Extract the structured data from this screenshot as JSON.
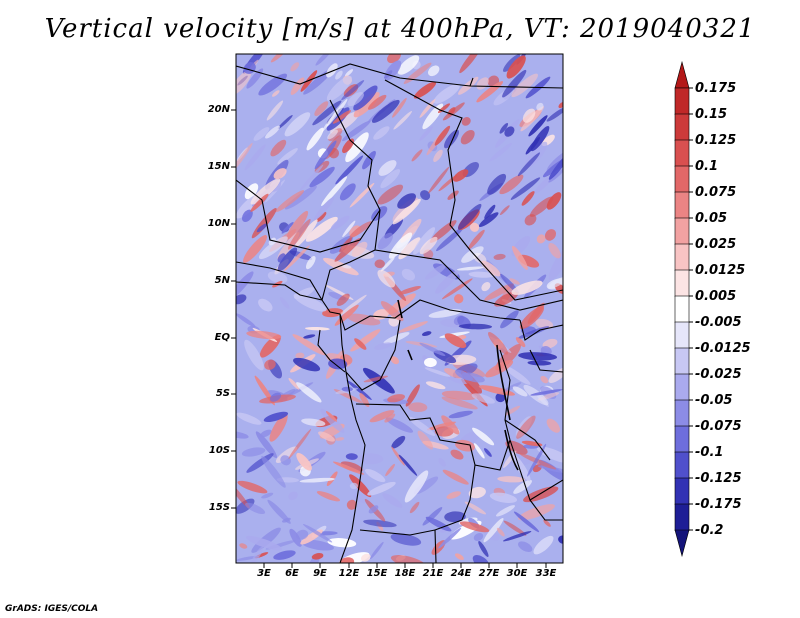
{
  "title": "Vertical velocity [m/s] at 400hPa, VT: 2019040321",
  "credit": "GrADS: IGES/COLA",
  "map": {
    "lat_labels": [
      "20N",
      "15N",
      "10N",
      "5N",
      "EQ",
      "5S",
      "10S",
      "15S"
    ],
    "lon_labels": [
      "3E",
      "6E",
      "9E",
      "12E",
      "15E",
      "18E",
      "21E",
      "24E",
      "27E",
      "30E",
      "33E"
    ]
  },
  "colorbar": {
    "labels": [
      "0.175",
      "0.15",
      "0.125",
      "0.1",
      "0.075",
      "0.05",
      "0.025",
      "0.0125",
      "0.005",
      "-0.005",
      "-0.0125",
      "-0.025",
      "-0.05",
      "-0.075",
      "-0.1",
      "-0.125",
      "-0.175",
      "-0.2"
    ],
    "colors": [
      "#b31818",
      "#c02828",
      "#cc3a3a",
      "#d95050",
      "#e26868",
      "#eb8484",
      "#f2a2a2",
      "#f8c4c4",
      "#fce4e4",
      "#ffffff",
      "#e6e6fa",
      "#c8c8f4",
      "#aaaaee",
      "#8c8ce6",
      "#6e6edc",
      "#5050cc",
      "#3232b4",
      "#1e1e96",
      "#14147a"
    ]
  }
}
